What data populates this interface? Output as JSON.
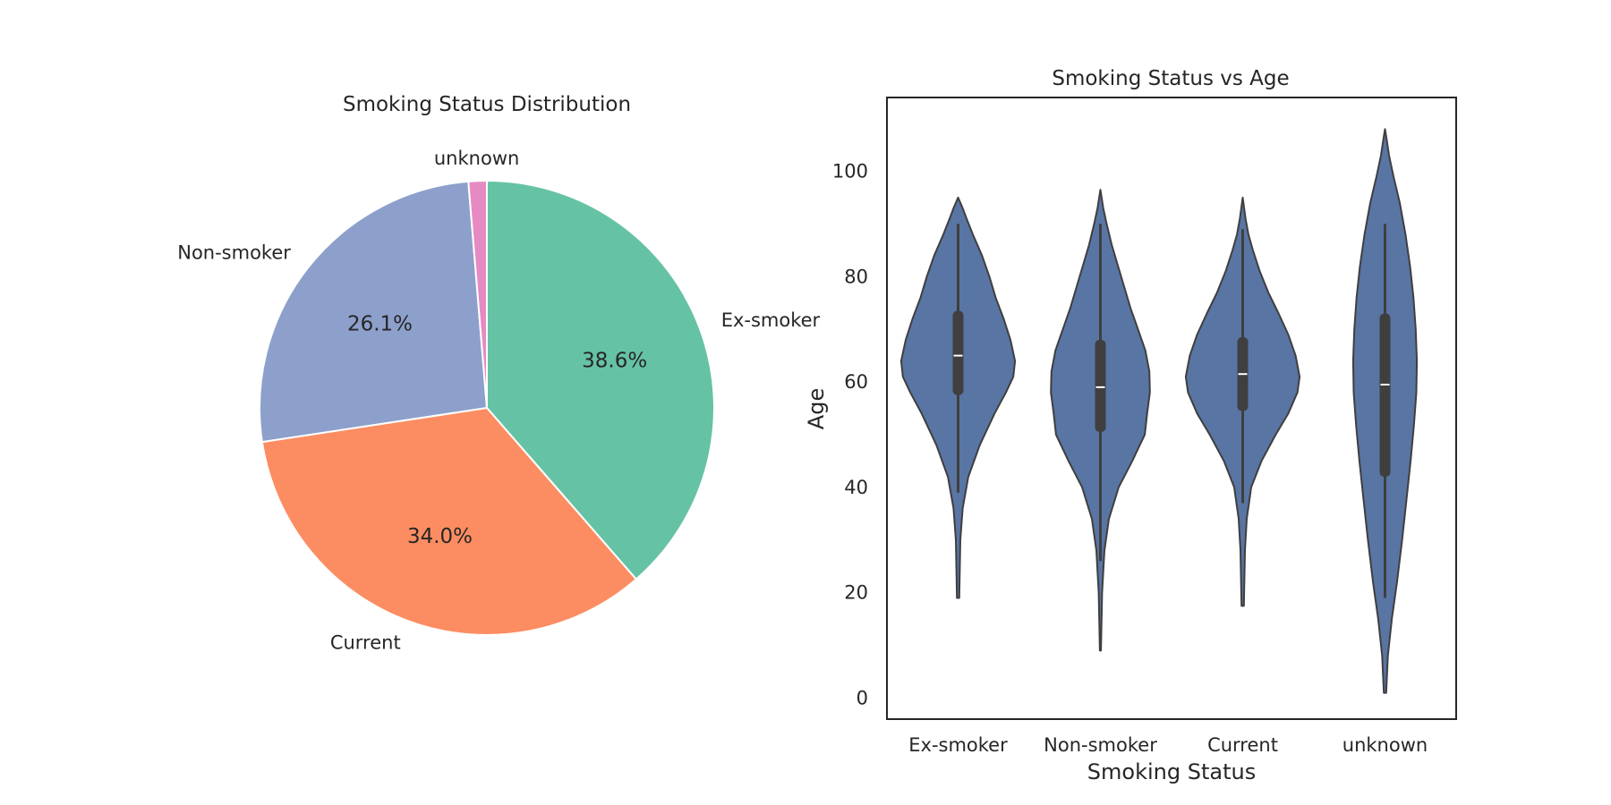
{
  "chart_data": [
    {
      "type": "pie",
      "title": "Smoking Status Distribution",
      "labels": [
        "Ex-smoker",
        "Current",
        "Non-smoker",
        "unknown"
      ],
      "values": [
        38.6,
        34.0,
        26.1,
        1.3
      ],
      "autopct_labels": [
        "38.6%",
        "34.0%",
        "26.1%",
        ""
      ],
      "colors": [
        "#66c2a5",
        "#fc8d62",
        "#8da0cb",
        "#e78ac3"
      ],
      "startangle": 90,
      "direction": "clockwise"
    },
    {
      "type": "violin",
      "title": "Smoking Status vs Age",
      "xlabel": "Smoking Status",
      "ylabel": "Age",
      "categories": [
        "Ex-smoker",
        "Non-smoker",
        "Current",
        "unknown"
      ],
      "ylim": [
        -4,
        114
      ],
      "yticks": [
        0,
        20,
        40,
        60,
        80,
        100
      ],
      "color": "#5975a4",
      "grid": false,
      "violins": [
        {
          "category": "Ex-smoker",
          "median": 65,
          "q1": 57.5,
          "q3": 73.5,
          "whisker_low": 39,
          "whisker_high": 90,
          "min": 19,
          "max": 95,
          "profile": [
            [
              19,
              0.02
            ],
            [
              30,
              0.04
            ],
            [
              36,
              0.08
            ],
            [
              42,
              0.18
            ],
            [
              48,
              0.38
            ],
            [
              54,
              0.64
            ],
            [
              58,
              0.84
            ],
            [
              61,
              0.97
            ],
            [
              64,
              1.0
            ],
            [
              68,
              0.92
            ],
            [
              72,
              0.8
            ],
            [
              76,
              0.66
            ],
            [
              80,
              0.55
            ],
            [
              84,
              0.42
            ],
            [
              88,
              0.26
            ],
            [
              91,
              0.15
            ],
            [
              93,
              0.08
            ],
            [
              95,
              0.0
            ]
          ]
        },
        {
          "category": "Non-smoker",
          "median": 59,
          "q1": 50.5,
          "q3": 68,
          "whisker_low": 26,
          "whisker_high": 90,
          "min": 9,
          "max": 96.5,
          "profile": [
            [
              9,
              0.01
            ],
            [
              20,
              0.03
            ],
            [
              28,
              0.07
            ],
            [
              34,
              0.15
            ],
            [
              40,
              0.32
            ],
            [
              45,
              0.56
            ],
            [
              50,
              0.78
            ],
            [
              54,
              0.82
            ],
            [
              58,
              0.87
            ],
            [
              62,
              0.86
            ],
            [
              66,
              0.79
            ],
            [
              70,
              0.66
            ],
            [
              74,
              0.53
            ],
            [
              78,
              0.42
            ],
            [
              82,
              0.31
            ],
            [
              86,
              0.2
            ],
            [
              90,
              0.11
            ],
            [
              93,
              0.05
            ],
            [
              96.5,
              0.0
            ]
          ]
        },
        {
          "category": "Current",
          "median": 61.5,
          "q1": 54.5,
          "q3": 68.5,
          "whisker_low": 37,
          "whisker_high": 89,
          "min": 17.5,
          "max": 95,
          "profile": [
            [
              17.5,
              0.02
            ],
            [
              28,
              0.04
            ],
            [
              34,
              0.07
            ],
            [
              40,
              0.15
            ],
            [
              45,
              0.33
            ],
            [
              50,
              0.58
            ],
            [
              54,
              0.8
            ],
            [
              58,
              0.96
            ],
            [
              61,
              1.0
            ],
            [
              65,
              0.93
            ],
            [
              69,
              0.8
            ],
            [
              73,
              0.63
            ],
            [
              77,
              0.45
            ],
            [
              81,
              0.3
            ],
            [
              85,
              0.18
            ],
            [
              88,
              0.1
            ],
            [
              91,
              0.05
            ],
            [
              95,
              0.0
            ]
          ]
        },
        {
          "category": "unknown",
          "median": 59.5,
          "q1": 42,
          "q3": 73,
          "whisker_low": 19,
          "whisker_high": 90,
          "min": 1,
          "max": 108,
          "profile": [
            [
              1,
              0.02
            ],
            [
              8,
              0.05
            ],
            [
              15,
              0.12
            ],
            [
              22,
              0.21
            ],
            [
              30,
              0.3
            ],
            [
              38,
              0.38
            ],
            [
              45,
              0.45
            ],
            [
              52,
              0.51
            ],
            [
              58,
              0.55
            ],
            [
              64,
              0.56
            ],
            [
              70,
              0.54
            ],
            [
              76,
              0.5
            ],
            [
              82,
              0.44
            ],
            [
              88,
              0.36
            ],
            [
              94,
              0.26
            ],
            [
              99,
              0.15
            ],
            [
              103,
              0.07
            ],
            [
              106,
              0.03
            ],
            [
              108,
              0.0
            ]
          ]
        }
      ]
    }
  ]
}
